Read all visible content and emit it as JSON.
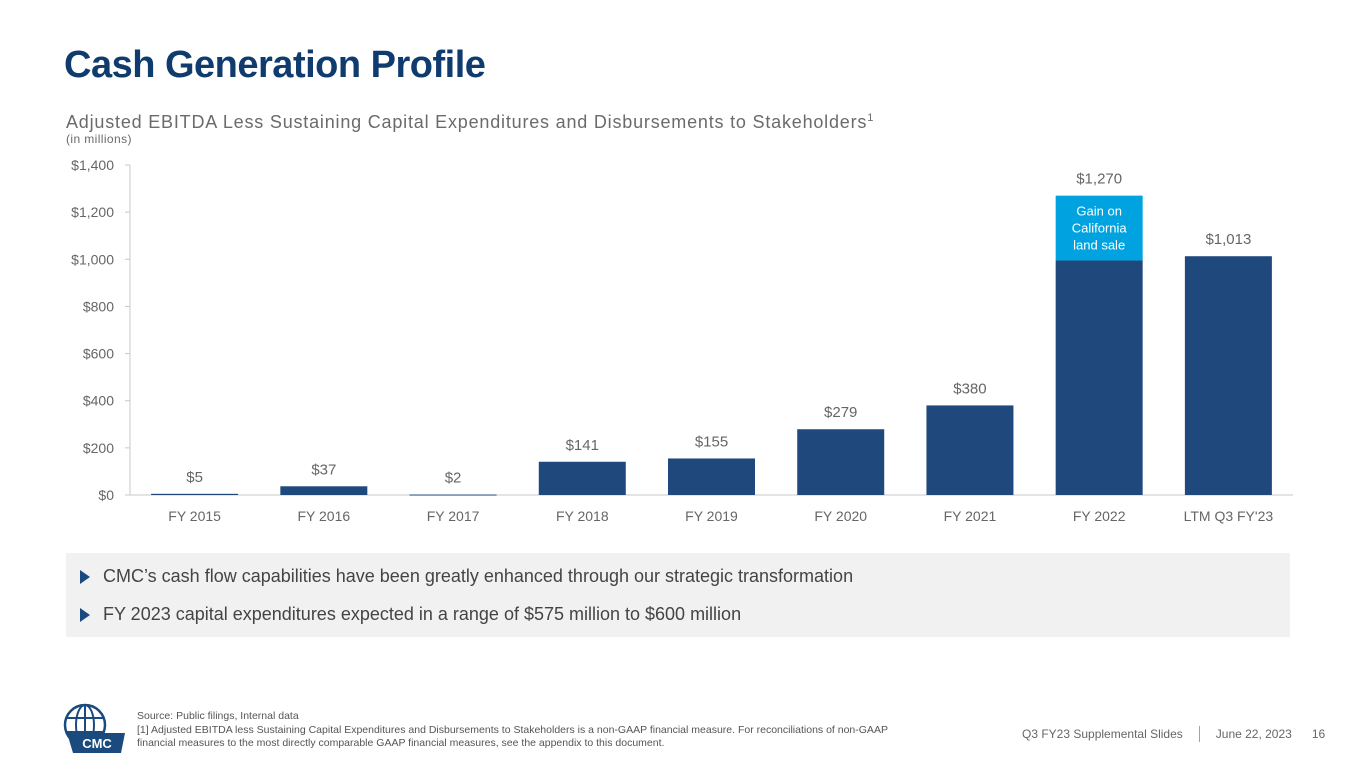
{
  "page": {
    "title": "Cash Generation Profile"
  },
  "chart_header": {
    "title": "Adjusted EBITDA Less Sustaining Capital Expenditures and Disbursements to Stakeholders",
    "title_superscript": "1",
    "subtitle": "(in millions)"
  },
  "chart_data": {
    "type": "bar",
    "categories": [
      "FY 2015",
      "FY 2016",
      "FY 2017",
      "FY 2018",
      "FY 2019",
      "FY 2020",
      "FY 2021",
      "FY 2022",
      "LTM Q3 FY'23"
    ],
    "values": [
      5,
      37,
      2,
      141,
      155,
      279,
      380,
      1270,
      1013
    ],
    "data_labels": [
      "$5",
      "$37",
      "$2",
      "$141",
      "$155",
      "$279",
      "$380",
      "$1,270",
      "$1,013"
    ],
    "stacked_segment": {
      "category": "FY 2022",
      "base_value": 995,
      "label_lines": [
        "Gain on",
        "California",
        "land sale"
      ]
    },
    "yticks": [
      0,
      200,
      400,
      600,
      800,
      1000,
      1200,
      1400
    ],
    "ytick_labels": [
      "$0",
      "$200",
      "$400",
      "$600",
      "$800",
      "$1,000",
      "$1,200",
      "$1,400"
    ],
    "ylim": [
      0,
      1400
    ],
    "grid": false,
    "colors": {
      "bar": "#1f497d",
      "segment": "#00a3e0",
      "axis": "#c8c8c8",
      "label": "#666666"
    }
  },
  "bullets": [
    "CMC’s cash flow capabilities have been greatly enhanced through our strategic transformation",
    "FY 2023 capital expenditures expected in a range of $575 million to $600 million"
  ],
  "footnote": {
    "source": "Source: Public filings, Internal data",
    "note": "[1] Adjusted EBITDA less Sustaining Capital Expenditures and Disbursements to Stakeholders is a non-GAAP financial measure. For reconciliations of non-GAAP financial measures to the most directly comparable GAAP financial measures, see the appendix to this document."
  },
  "footer": {
    "deck": "Q3 FY23 Supplemental Slides",
    "date": "June 22, 2023",
    "page_number": "16",
    "logo_text": "CMC"
  }
}
